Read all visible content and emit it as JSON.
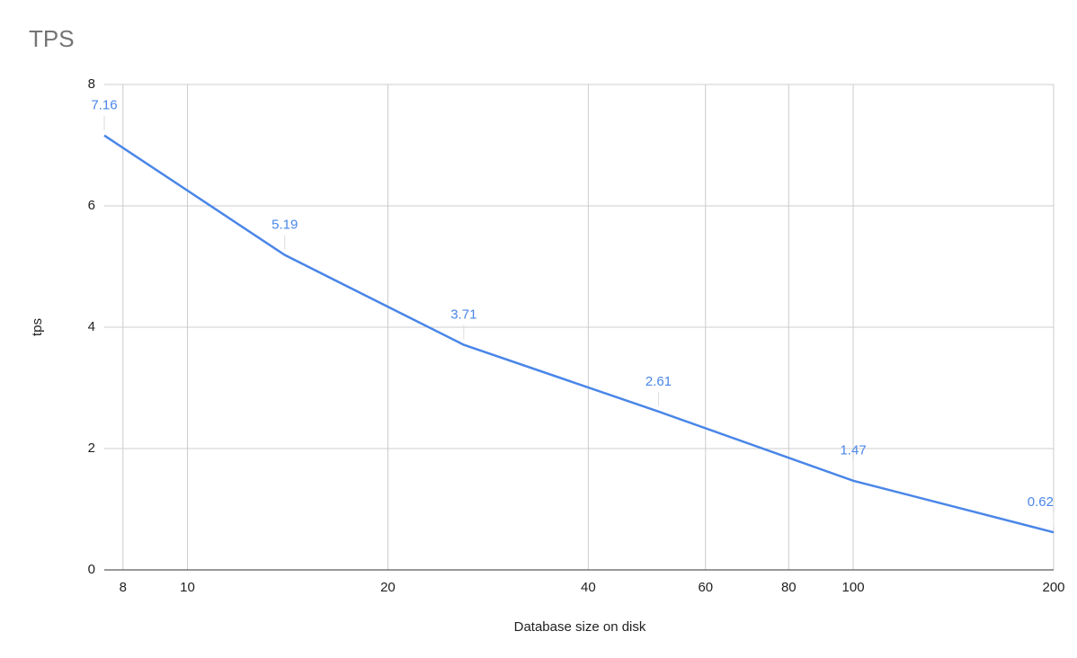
{
  "chart_data": {
    "type": "line",
    "title": "TPS",
    "x_label": "Database size on disk",
    "y_label": "tps",
    "x": [
      7.5,
      14,
      26,
      51,
      100,
      200
    ],
    "series": [
      {
        "name": "tps",
        "color": "#4a86e8",
        "values": [
          7.16,
          5.19,
          3.71,
          2.61,
          1.47,
          0.62
        ]
      }
    ],
    "xlim": [
      7.5,
      200
    ],
    "xticks": [
      8,
      10,
      20,
      40,
      60,
      80,
      100,
      200
    ],
    "x_scale": "log",
    "ylim": [
      0,
      8
    ],
    "yticks": [
      0,
      2,
      4,
      6,
      8
    ],
    "grid": true,
    "data_labels": true
  }
}
